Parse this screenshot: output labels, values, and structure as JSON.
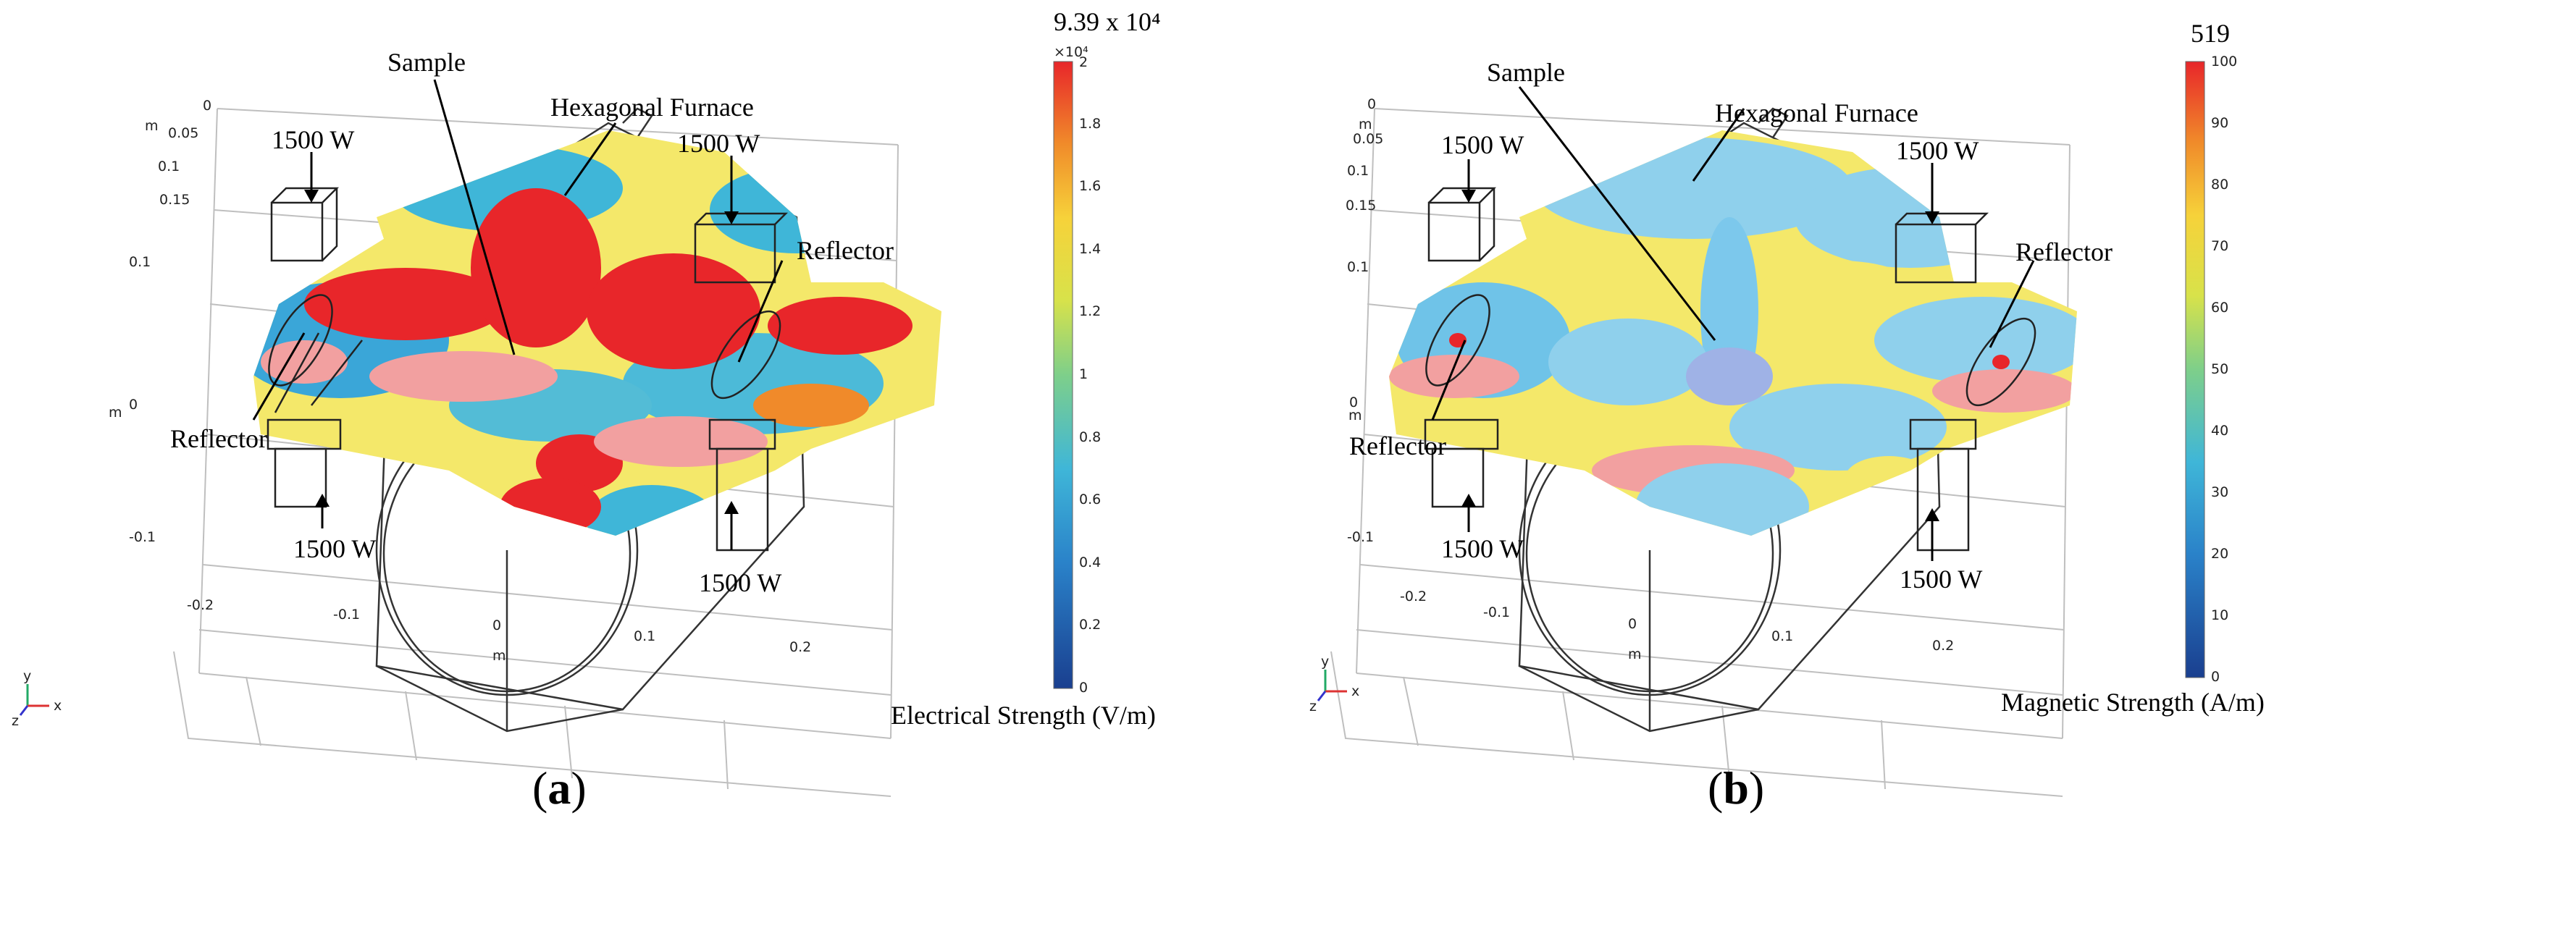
{
  "panels": [
    {
      "id": "a",
      "caption_letter": "a",
      "colorbar": {
        "max_label": "9.39 x 10⁴",
        "multiplier": "×10⁴",
        "ticks": [
          "0",
          "0.2",
          "0.4",
          "0.6",
          "0.8",
          "1",
          "1.2",
          "1.4",
          "1.6",
          "1.8",
          "2"
        ],
        "title": "Electrical Strength (V/m)"
      },
      "labels": {
        "sample": "Sample",
        "furnace": "Hexagonal Furnace",
        "reflector_right": "Reflector",
        "reflector_left": "Reflector",
        "power_top_left": "1500 W",
        "power_top_right": "1500 W",
        "power_bottom_left": "1500 W",
        "power_bottom_right": "1500 W"
      },
      "axes": {
        "x_ticks": [
          "-0.2",
          "-0.1",
          "0",
          "0.1",
          "0.2"
        ],
        "x_unit": "m",
        "y_ticks": [
          "0.1",
          "0",
          "-0.1"
        ],
        "y_unit": "m",
        "z_ticks": [
          "0",
          "0.05",
          "0.1",
          "0.15"
        ],
        "z_unit": "m"
      },
      "triad": {
        "y": "y",
        "x": "x",
        "z": "z"
      }
    },
    {
      "id": "b",
      "caption_letter": "b",
      "colorbar": {
        "max_label": "519",
        "multiplier": "",
        "ticks": [
          "0",
          "10",
          "20",
          "30",
          "40",
          "50",
          "60",
          "70",
          "80",
          "90",
          "100"
        ],
        "title": "Magnetic Strength (A/m)"
      },
      "labels": {
        "sample": "Sample",
        "furnace": "Hexagonal Furnace",
        "reflector_right": "Reflector",
        "reflector_left": "Reflector",
        "power_top_left": "1500 W",
        "power_top_right": "1500 W",
        "power_bottom_left": "1500 W",
        "power_bottom_right": "1500 W"
      },
      "axes": {
        "x_ticks": [
          "-0.2",
          "-0.1",
          "0",
          "0.1",
          "0.2"
        ],
        "x_unit": "m",
        "y_ticks": [
          "0.1",
          "0",
          "-0.1"
        ],
        "y_unit": "m",
        "z_ticks": [
          "0",
          "0.05",
          "0.1",
          "0.15"
        ],
        "z_unit": "m"
      },
      "triad": {
        "y": "y",
        "x": "x",
        "z": "z"
      }
    }
  ]
}
